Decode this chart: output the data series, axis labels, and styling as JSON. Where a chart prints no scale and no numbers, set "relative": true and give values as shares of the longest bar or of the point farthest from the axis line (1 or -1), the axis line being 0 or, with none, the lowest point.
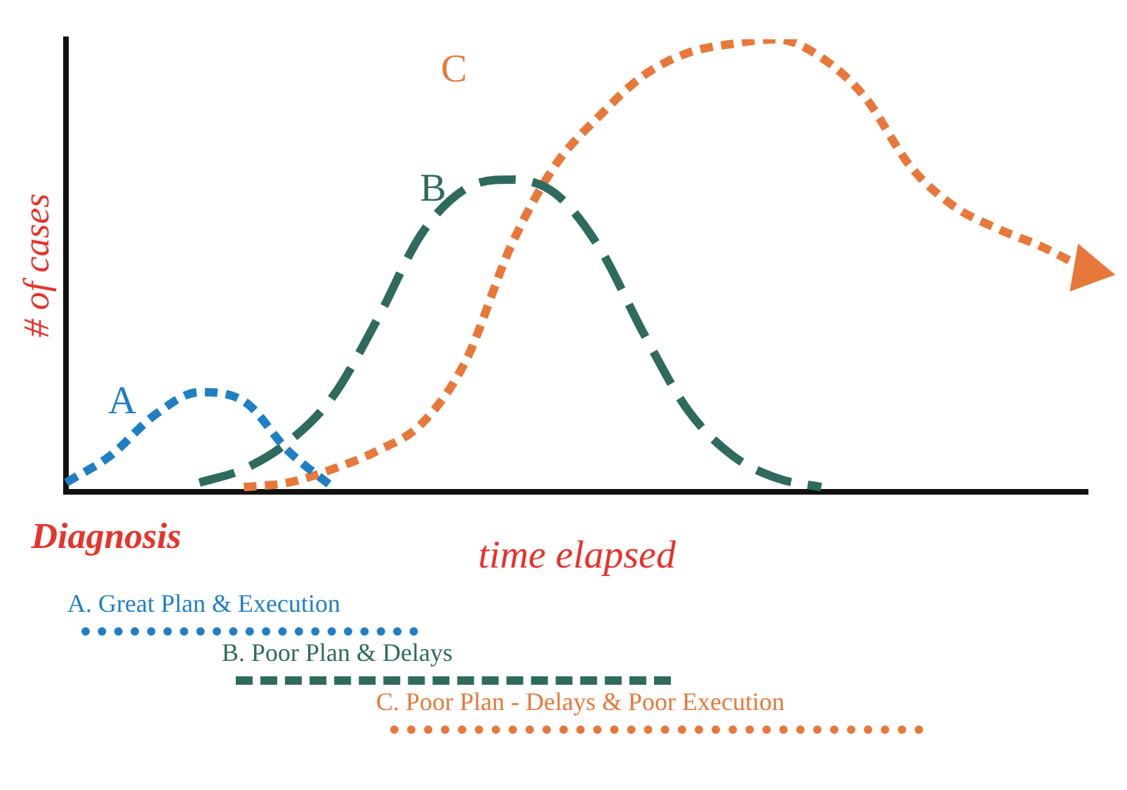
{
  "chart_data": {
    "type": "line",
    "relative": true,
    "ylabel": "# of cases",
    "xlabel": "time elapsed",
    "annotations": [
      "A",
      "B",
      "C",
      "Diagnosis"
    ],
    "categories": [
      null,
      null,
      null,
      null,
      null,
      null,
      null,
      null,
      null,
      null,
      null,
      null,
      null,
      null,
      null,
      null,
      null,
      null,
      null,
      null,
      null,
      null,
      null,
      null
    ],
    "series": [
      {
        "name": "A. Great Plan & Execution",
        "color": "#1f7fc4",
        "line_style": "dotted",
        "values": [
          0.02,
          0.08,
          0.17,
          0.22,
          0.2,
          0.09,
          0.01,
          null,
          null,
          null,
          null,
          null,
          null,
          null,
          null,
          null,
          null,
          null,
          null,
          null,
          null,
          null,
          null,
          null
        ]
      },
      {
        "name": "B. Poor Plan & Delays",
        "color": "#2e6b5e",
        "line_style": "dashed",
        "values": [
          null,
          null,
          null,
          0.02,
          0.05,
          0.11,
          0.21,
          0.38,
          0.57,
          0.67,
          0.69,
          0.66,
          0.54,
          0.35,
          0.18,
          0.08,
          0.03,
          0.01,
          null,
          null,
          null,
          null,
          null,
          null
        ]
      },
      {
        "name": "C. Poor Plan - Delays & Poor Execution",
        "color": "#e8783a",
        "line_style": "dotted",
        "values": [
          null,
          null,
          null,
          null,
          0.01,
          0.02,
          0.05,
          0.09,
          0.15,
          0.29,
          0.54,
          0.72,
          0.83,
          0.92,
          0.97,
          0.99,
          1,
          0.96,
          0.87,
          0.72,
          0.63,
          0.58,
          0.54,
          0.49
        ]
      }
    ],
    "grid": false,
    "legend": "bottom left",
    "marker": "none"
  }
}
